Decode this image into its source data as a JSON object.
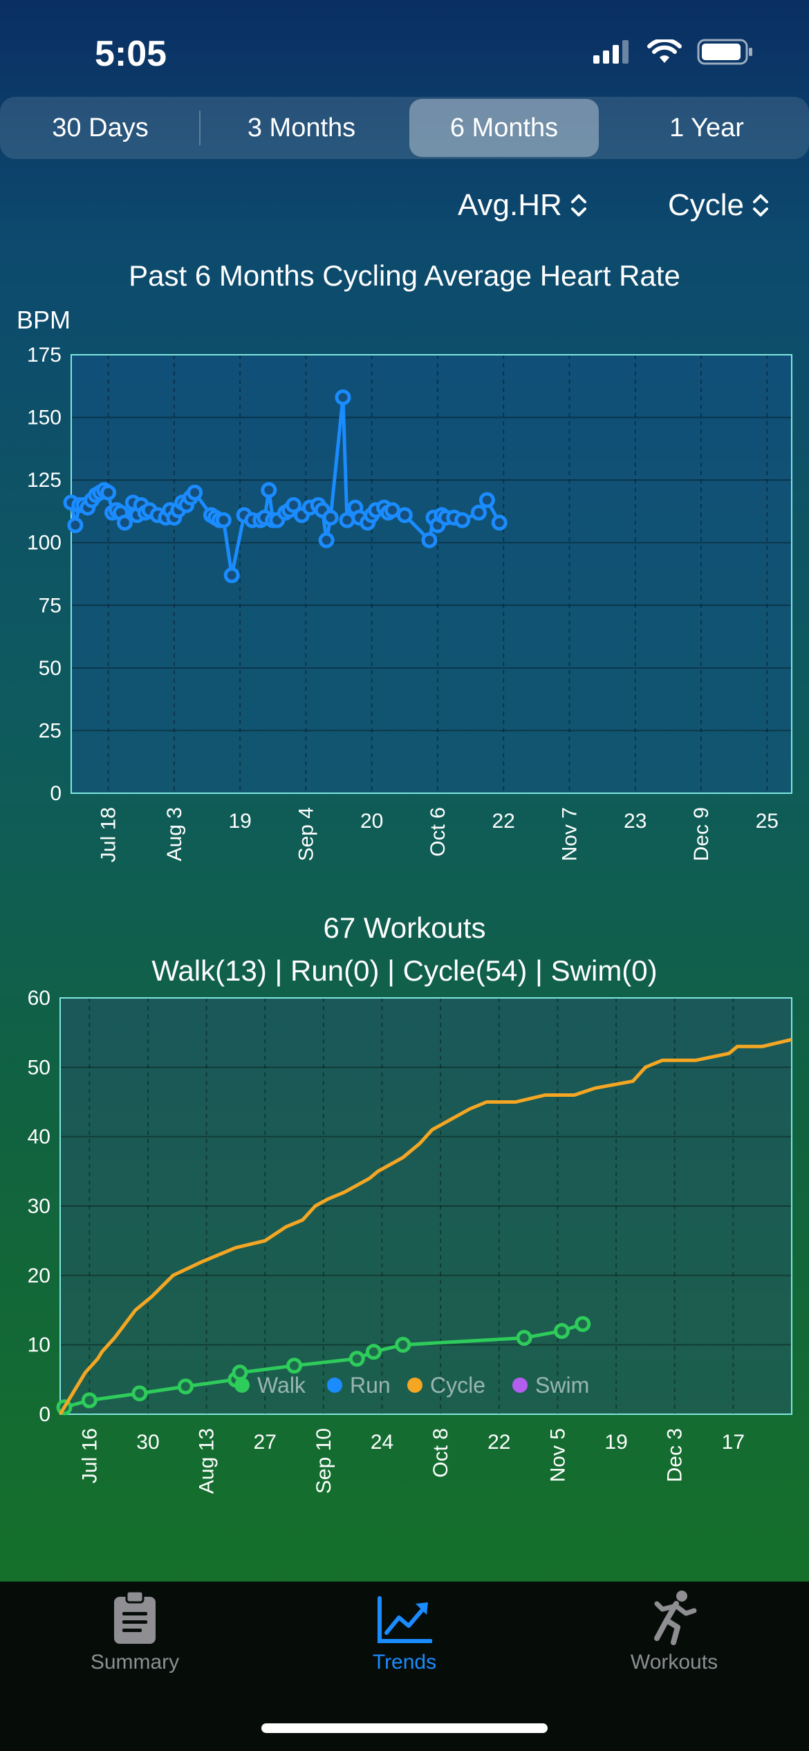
{
  "status": {
    "time": "5:05"
  },
  "segments": [
    "30 Days",
    "3 Months",
    "6 Months",
    "1 Year"
  ],
  "active_segment": "6 Months",
  "pickers": {
    "metric": "Avg.HR",
    "activity": "Cycle"
  },
  "hr_chart_title": "Past 6 Months Cycling Average Heart Rate",
  "workouts": {
    "title": "67 Workouts",
    "subtitle": "Walk(13) | Run(0) | Cycle(54) | Swim(0)"
  },
  "chart_data": [
    {
      "type": "line",
      "title": "Past 6 Months Cycling Average Heart Rate",
      "ylabel": "BPM",
      "ylim": [
        0,
        175
      ],
      "yticks": [
        0,
        25,
        50,
        75,
        100,
        125,
        150,
        175
      ],
      "xlim": [
        "2023-07-09",
        "2023-12-31"
      ],
      "xticks": [
        {
          "date": "2023-07-18",
          "label": "Jul 18",
          "rotated": true
        },
        {
          "date": "2023-08-03",
          "label": "Aug 3",
          "rotated": true
        },
        {
          "date": "2023-08-19",
          "label": "19",
          "rotated": false
        },
        {
          "date": "2023-09-04",
          "label": "Sep 4",
          "rotated": true
        },
        {
          "date": "2023-09-20",
          "label": "20",
          "rotated": false
        },
        {
          "date": "2023-10-06",
          "label": "Oct 6",
          "rotated": true
        },
        {
          "date": "2023-10-22",
          "label": "22",
          "rotated": false
        },
        {
          "date": "2023-11-07",
          "label": "Nov 7",
          "rotated": true
        },
        {
          "date": "2023-11-23",
          "label": "23",
          "rotated": false
        },
        {
          "date": "2023-12-09",
          "label": "Dec 9",
          "rotated": true
        },
        {
          "date": "2023-12-25",
          "label": "25",
          "rotated": false
        }
      ],
      "grid": true,
      "color": "#1a8cff",
      "series": [
        {
          "x": [
            "2023-07-09",
            "2023-07-10",
            "2023-07-11",
            "2023-07-12",
            "2023-07-13",
            "2023-07-14",
            "2023-07-15",
            "2023-07-16",
            "2023-07-17",
            "2023-07-18",
            "2023-07-19",
            "2023-07-20",
            "2023-07-21",
            "2023-07-22",
            "2023-07-24",
            "2023-07-25",
            "2023-07-26",
            "2023-07-27",
            "2023-07-28",
            "2023-07-30",
            "2023-08-01",
            "2023-08-02",
            "2023-08-03",
            "2023-08-04",
            "2023-08-05",
            "2023-08-06",
            "2023-08-07",
            "2023-08-08",
            "2023-08-12",
            "2023-08-13",
            "2023-08-14",
            "2023-08-15",
            "2023-08-17",
            "2023-08-20",
            "2023-08-22",
            "2023-08-24",
            "2023-08-25",
            "2023-08-26",
            "2023-08-27",
            "2023-08-28",
            "2023-08-30",
            "2023-08-31",
            "2023-09-01",
            "2023-09-03",
            "2023-09-05",
            "2023-09-07",
            "2023-09-08",
            "2023-09-09",
            "2023-09-10",
            "2023-09-13",
            "2023-09-14",
            "2023-09-16",
            "2023-09-17",
            "2023-09-19",
            "2023-09-20",
            "2023-09-21",
            "2023-09-23",
            "2023-09-24",
            "2023-09-25",
            "2023-09-28",
            "2023-10-04",
            "2023-10-05",
            "2023-10-06",
            "2023-10-07",
            "2023-10-08",
            "2023-10-10",
            "2023-10-12",
            "2023-10-16",
            "2023-10-18",
            "2023-10-21"
          ],
          "y": [
            116,
            107,
            115,
            115,
            114,
            117,
            119,
            120,
            121,
            120,
            112,
            113,
            112,
            108,
            116,
            111,
            115,
            112,
            113,
            111,
            110,
            113,
            110,
            113,
            116,
            115,
            118,
            120,
            111,
            110,
            109,
            109,
            87,
            111,
            109,
            109,
            110,
            121,
            109,
            109,
            112,
            113,
            115,
            111,
            114,
            115,
            113,
            101,
            110,
            158,
            109,
            114,
            110,
            108,
            111,
            113,
            114,
            112,
            113,
            111,
            101,
            110,
            107,
            111,
            110,
            110,
            109,
            112,
            117,
            108
          ]
        }
      ]
    },
    {
      "type": "line",
      "title": "67 Workouts",
      "subtitle": "Walk(13) | Run(0) | Cycle(54) | Swim(0)",
      "ylim": [
        0,
        60
      ],
      "yticks": [
        0,
        10,
        20,
        30,
        40,
        50,
        60
      ],
      "xlim": [
        "2023-07-09",
        "2023-12-31"
      ],
      "xticks": [
        {
          "date": "2023-07-16",
          "label": "Jul 16",
          "rotated": true
        },
        {
          "date": "2023-07-30",
          "label": "30",
          "rotated": false
        },
        {
          "date": "2023-08-13",
          "label": "Aug 13",
          "rotated": true
        },
        {
          "date": "2023-08-27",
          "label": "27",
          "rotated": false
        },
        {
          "date": "2023-09-10",
          "label": "Sep 10",
          "rotated": true
        },
        {
          "date": "2023-09-24",
          "label": "24",
          "rotated": false
        },
        {
          "date": "2023-10-08",
          "label": "Oct 8",
          "rotated": true
        },
        {
          "date": "2023-10-22",
          "label": "22",
          "rotated": false
        },
        {
          "date": "2023-11-05",
          "label": "Nov 5",
          "rotated": true
        },
        {
          "date": "2023-11-19",
          "label": "19",
          "rotated": false
        },
        {
          "date": "2023-12-03",
          "label": "Dec 3",
          "rotated": true
        },
        {
          "date": "2023-12-17",
          "label": "17",
          "rotated": false
        }
      ],
      "grid": true,
      "legend": {
        "placement": "bottom-center",
        "items": [
          {
            "name": "Walk",
            "color": "#2ecc5a"
          },
          {
            "name": "Run",
            "color": "#1a8cff"
          },
          {
            "name": "Cycle",
            "color": "#f5a623"
          },
          {
            "name": "Swim",
            "color": "#b45ef0"
          }
        ]
      },
      "series": [
        {
          "name": "Walk",
          "color": "#2ecc5a",
          "markers": true,
          "x": [
            "2023-07-10",
            "2023-07-16",
            "2023-07-28",
            "2023-08-08",
            "2023-08-20",
            "2023-08-21",
            "2023-09-03",
            "2023-09-18",
            "2023-09-22",
            "2023-09-29",
            "2023-10-28",
            "2023-11-06",
            "2023-11-11"
          ],
          "y": [
            1,
            2,
            3,
            4,
            5,
            6,
            7,
            8,
            9,
            10,
            11,
            12,
            13
          ]
        },
        {
          "name": "Cycle",
          "color": "#f5a623",
          "markers": false,
          "x": [
            "2023-07-09",
            "2023-07-10",
            "2023-07-12",
            "2023-07-15",
            "2023-07-18",
            "2023-07-19",
            "2023-07-22",
            "2023-07-27",
            "2023-07-31",
            "2023-08-05",
            "2023-08-12",
            "2023-08-20",
            "2023-08-27",
            "2023-09-01",
            "2023-09-05",
            "2023-09-08",
            "2023-09-11",
            "2023-09-15",
            "2023-09-18",
            "2023-09-21",
            "2023-09-23",
            "2023-09-26",
            "2023-09-29",
            "2023-10-01",
            "2023-10-03",
            "2023-10-06",
            "2023-10-09",
            "2023-10-12",
            "2023-10-15",
            "2023-10-19",
            "2023-10-23",
            "2023-10-26",
            "2023-11-02",
            "2023-11-09",
            "2023-11-14",
            "2023-11-23",
            "2023-11-26",
            "2023-11-30",
            "2023-12-08",
            "2023-12-16",
            "2023-12-18",
            "2023-12-24",
            "2023-12-31"
          ],
          "y": [
            0,
            1,
            3,
            6,
            8,
            9,
            11,
            15,
            17,
            20,
            22,
            24,
            25,
            27,
            28,
            30,
            31,
            32,
            33,
            34,
            35,
            36,
            37,
            38,
            39,
            41,
            42,
            43,
            44,
            45,
            45,
            45,
            46,
            46,
            47,
            48,
            50,
            51,
            51,
            52,
            53,
            53,
            54
          ]
        }
      ]
    }
  ],
  "tabs": [
    {
      "label": "Summary",
      "icon": "clipboard-icon",
      "active": false
    },
    {
      "label": "Trends",
      "icon": "trend-chart-icon",
      "active": true
    },
    {
      "label": "Workouts",
      "icon": "runner-icon",
      "active": false
    }
  ],
  "colors": {
    "accent": "#1a8cff",
    "cycle": "#f5a623",
    "walk": "#2ecc5a",
    "tab_inactive": "#8e8e93"
  }
}
